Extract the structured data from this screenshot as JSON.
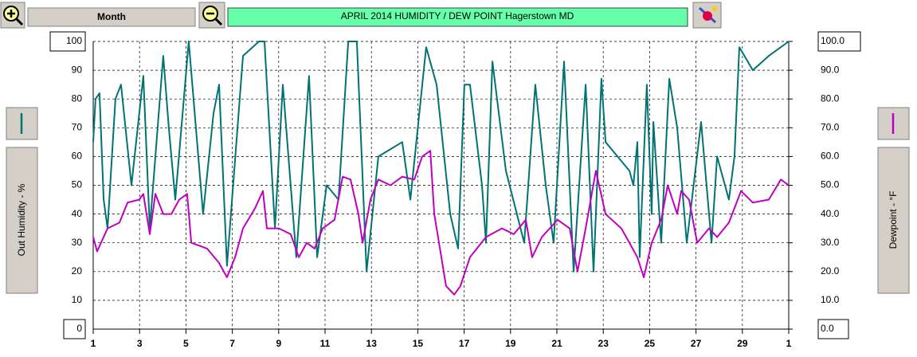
{
  "toolbar": {
    "period": "Month"
  },
  "chart_data": {
    "type": "line",
    "title": "APRIL  2014  HUMIDITY / DEW POINT  Hagerstown MD",
    "xlim": [
      1,
      31
    ],
    "xticks": [
      1,
      3,
      5,
      7,
      9,
      11,
      13,
      15,
      17,
      19,
      21,
      23,
      25,
      27,
      29,
      {
        "value": 31,
        "label": "1"
      }
    ],
    "ylim": [
      0,
      100
    ],
    "yticks": [
      0,
      10,
      20,
      30,
      40,
      50,
      60,
      70,
      80,
      90,
      100
    ],
    "y2lim": [
      0,
      100
    ],
    "y2ticks": [
      {
        "value": 0,
        "label": "0.0"
      },
      {
        "value": 10,
        "label": "10.0"
      },
      {
        "value": 20,
        "label": "20.0"
      },
      {
        "value": 30,
        "label": "30.0"
      },
      {
        "value": 40,
        "label": "40.0"
      },
      {
        "value": 50,
        "label": "50.0"
      },
      {
        "value": 60,
        "label": "60.0"
      },
      {
        "value": 70,
        "label": "70.0"
      },
      {
        "value": 80,
        "label": "80.0"
      },
      {
        "value": 90,
        "label": "90.0"
      },
      {
        "value": 100,
        "label": "100.0"
      }
    ],
    "grid": true,
    "series": [
      {
        "name": "Out Humidity - %",
        "color": "#007373",
        "x": [
          1.0,
          1.1,
          1.27,
          1.45,
          1.62,
          1.96,
          2.2,
          2.65,
          3.16,
          3.44,
          4.02,
          4.26,
          4.54,
          5.12,
          5.74,
          6.19,
          6.43,
          6.77,
          7.46,
          8.15,
          8.39,
          8.84,
          9.18,
          9.76,
          10.31,
          10.66,
          11.07,
          11.58,
          12.0,
          12.37,
          12.79,
          13.3,
          14.33,
          14.68,
          15.36,
          15.81,
          16.4,
          16.74,
          17.01,
          17.25,
          17.77,
          17.94,
          18.22,
          18.8,
          19.59,
          20.07,
          20.52,
          20.86,
          21.31,
          21.72,
          22.24,
          22.58,
          22.92,
          23.1,
          24.13,
          24.3,
          24.47,
          24.57,
          24.88,
          25.09,
          25.16,
          25.5,
          25.85,
          26.19,
          26.6,
          27.22,
          27.67,
          27.91,
          28.42,
          28.66,
          28.87,
          29.45,
          30.14,
          31.0
        ],
        "values": [
          65,
          80,
          82,
          45,
          35,
          80,
          85,
          50,
          88,
          35,
          95,
          70,
          45,
          100,
          40,
          75,
          85,
          22,
          95,
          100,
          100,
          35,
          85,
          25,
          88,
          25,
          50,
          45,
          100,
          100,
          20,
          60,
          65,
          45,
          98,
          85,
          40,
          28,
          85,
          85,
          50,
          30,
          93,
          55,
          30,
          85,
          50,
          30,
          93,
          20,
          85,
          20,
          87,
          65,
          55,
          50,
          65,
          25,
          85,
          40,
          72,
          30,
          87,
          70,
          30,
          72,
          30,
          60,
          45,
          60,
          98,
          90,
          95,
          100
        ]
      },
      {
        "name": "Dewpoint - °F",
        "color": "#c000c0",
        "axis": "y2",
        "x": [
          1.0,
          1.17,
          1.62,
          2.13,
          2.48,
          2.99,
          3.16,
          3.44,
          3.68,
          4.02,
          4.37,
          4.71,
          5.05,
          5.23,
          5.91,
          6.43,
          6.77,
          7.12,
          7.46,
          7.98,
          8.32,
          8.49,
          9.01,
          9.52,
          9.87,
          10.21,
          10.55,
          10.9,
          11.41,
          11.76,
          12.1,
          12.44,
          12.62,
          12.96,
          13.3,
          13.82,
          14.33,
          14.85,
          15.19,
          15.54,
          15.71,
          16.22,
          16.57,
          16.84,
          17.25,
          17.94,
          18.63,
          19.14,
          19.66,
          19.93,
          20.35,
          21.03,
          21.55,
          21.89,
          22.24,
          22.68,
          23.1,
          23.78,
          24.13,
          24.47,
          24.75,
          25.09,
          25.5,
          25.78,
          26.19,
          26.36,
          26.7,
          27.05,
          27.56,
          27.91,
          28.42,
          28.94,
          29.45,
          30.14,
          30.66,
          31.0
        ],
        "values": [
          32,
          27,
          35,
          37,
          44,
          45,
          47,
          33,
          47,
          40,
          40,
          45,
          47,
          30,
          28,
          23,
          18,
          25,
          35,
          42,
          48,
          35,
          35,
          33,
          25,
          30,
          28,
          35,
          38,
          53,
          52,
          40,
          30,
          45,
          52,
          50,
          53,
          52,
          60,
          62,
          40,
          15,
          12,
          15,
          25,
          32,
          35,
          33,
          38,
          25,
          32,
          38,
          35,
          20,
          35,
          55,
          40,
          35,
          30,
          25,
          18,
          30,
          38,
          50,
          40,
          48,
          45,
          30,
          35,
          32,
          37,
          48,
          44,
          45,
          52,
          50
        ]
      }
    ]
  }
}
